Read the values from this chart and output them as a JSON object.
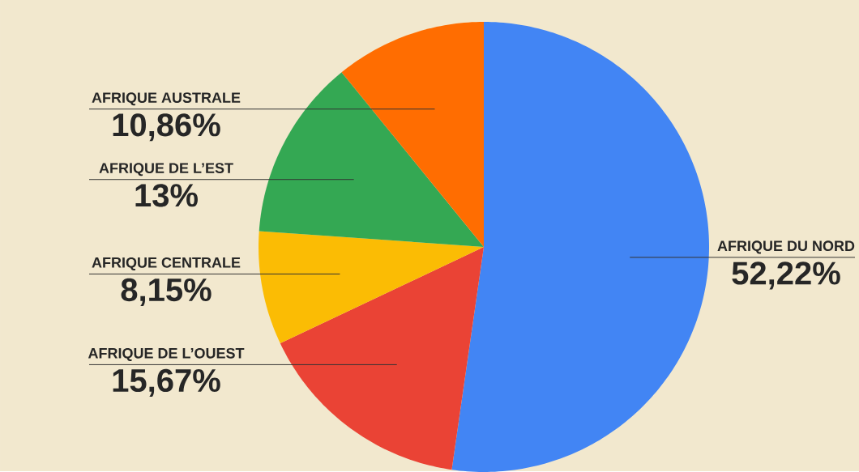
{
  "chart_data": {
    "type": "pie",
    "categories": [
      "AFRIQUE DU NORD",
      "AFRIQUE DE L’OUEST",
      "AFRIQUE CENTRALE",
      "AFRIQUE DE L’EST",
      "AFRIQUE AUSTRALE"
    ],
    "values": [
      52.22,
      15.67,
      8.15,
      13,
      10.86
    ],
    "colors": [
      "#4285f4",
      "#ea4335",
      "#fbbc04",
      "#34a853",
      "#ff6d01"
    ],
    "value_labels": [
      "52,22%",
      "15,67%",
      "8,15%",
      "13%",
      "10,86%"
    ]
  }
}
